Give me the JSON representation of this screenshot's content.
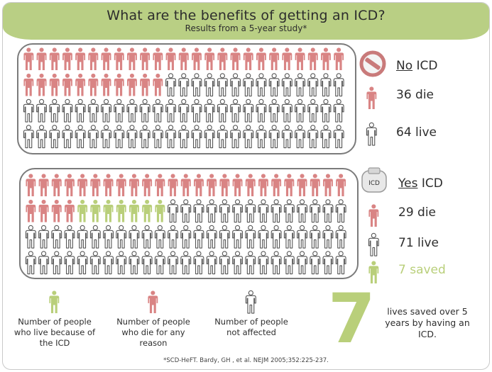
{
  "header": {
    "title": "What are the benefits of getting an ICD?",
    "subtitle": "Results from a 5-year study*"
  },
  "no_icd": {
    "label_underlined": "No",
    "label_rest": " ICD",
    "die_label": "36 die",
    "live_label": "64 live",
    "die_count": 36,
    "live_count": 64,
    "icon": "no-symbol-icon"
  },
  "yes_icd": {
    "label_underlined": "Yes",
    "label_rest": " ICD",
    "device_label": "ICD",
    "die_label": "29 die",
    "live_label": "71 live",
    "saved_label": "7 saved",
    "die_count": 29,
    "saved_count": 7,
    "live_count": 64,
    "icon": "icd-device-icon"
  },
  "legend": {
    "saved": "Number of people who live because of the ICD",
    "die": "Number of people who die for any reason",
    "unaffected": "Number of people not affected"
  },
  "summary": {
    "number": "7",
    "text": "lives saved over 5 years by having an ICD."
  },
  "footnote": "*SCD-HeFT. Bardy, GH , et al. NEJM 2005;352:225-237.",
  "colors": {
    "die": "#d98484",
    "saved": "#b9cf7a",
    "live_outline": "#555555",
    "banner": "#b9cf84"
  }
}
